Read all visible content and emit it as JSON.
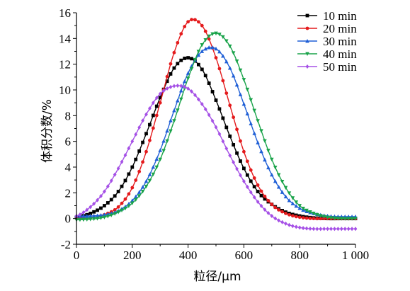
{
  "chart_data": {
    "type": "line",
    "title": "",
    "xlabel": "粒径/μm",
    "ylabel": "体积分数/%",
    "xlim": [
      0,
      1000
    ],
    "ylim": [
      -2,
      16
    ],
    "xticks": [
      0,
      200,
      400,
      600,
      800,
      1000
    ],
    "xtick_labels": [
      "0",
      "200",
      "400",
      "600",
      "800",
      "1 000"
    ],
    "yticks": [
      -2,
      0,
      2,
      4,
      6,
      8,
      10,
      12,
      14,
      16
    ],
    "ytick_labels": [
      "-2",
      "0",
      "2",
      "4",
      "6",
      "8",
      "10",
      "12",
      "14",
      "16"
    ],
    "grid": false,
    "legend_position": "top-right",
    "x": [
      0,
      50,
      100,
      150,
      200,
      250,
      300,
      350,
      400,
      450,
      500,
      550,
      600,
      650,
      700,
      750,
      800,
      850,
      900,
      950,
      1000
    ],
    "series": [
      {
        "name": "10 min",
        "color": "#000000",
        "marker": "square",
        "values": [
          0.1,
          0.4,
          1.0,
          2.1,
          4.0,
          6.6,
          9.4,
          11.7,
          12.5,
          11.6,
          9.2,
          6.4,
          3.9,
          2.1,
          1.1,
          0.5,
          0.2,
          0.05,
          0.0,
          0.0,
          0.0
        ]
      },
      {
        "name": "20 min",
        "color": "#e41a1c",
        "marker": "circle",
        "values": [
          0.0,
          0.05,
          0.3,
          0.9,
          2.4,
          5.2,
          9.0,
          12.9,
          15.3,
          15.0,
          12.5,
          8.8,
          5.2,
          2.6,
          1.1,
          0.4,
          0.1,
          0.0,
          0.0,
          0.0,
          0.0
        ]
      },
      {
        "name": "30 min",
        "color": "#1f5fd6",
        "marker": "triangle-up",
        "values": [
          0.2,
          0.2,
          0.3,
          0.6,
          1.4,
          2.9,
          5.3,
          8.4,
          11.3,
          13.0,
          13.2,
          11.7,
          8.9,
          5.9,
          3.4,
          1.7,
          0.8,
          0.4,
          0.2,
          0.15,
          0.15
        ]
      },
      {
        "name": "40 min",
        "color": "#1aa34a",
        "marker": "triangle-down",
        "values": [
          -0.1,
          -0.05,
          0.1,
          0.5,
          1.2,
          2.5,
          4.6,
          7.6,
          10.9,
          13.5,
          14.4,
          13.4,
          10.8,
          7.6,
          4.6,
          2.4,
          1.0,
          0.4,
          0.1,
          0.0,
          0.0
        ]
      },
      {
        "name": "50 min",
        "color": "#a550e6",
        "marker": "diamond",
        "values": [
          0.2,
          0.9,
          2.1,
          3.9,
          6.0,
          8.1,
          9.7,
          10.3,
          10.1,
          8.9,
          7.1,
          4.9,
          2.9,
          1.3,
          0.2,
          -0.4,
          -0.7,
          -0.8,
          -0.8,
          -0.8,
          -0.8
        ]
      }
    ]
  }
}
